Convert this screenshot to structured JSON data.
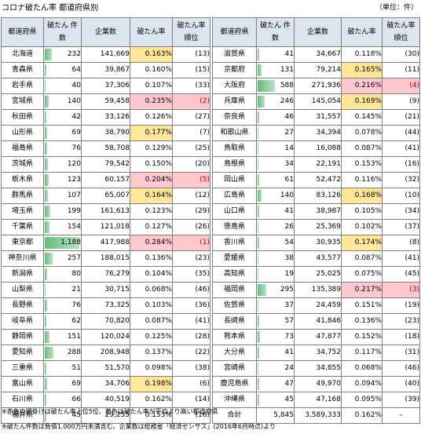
{
  "title": "コロナ破たん率  都道府県別",
  "unit": "（単位：件）",
  "headers": {
    "pref": "都道府県",
    "bankrupt": "破たん 件数",
    "companies": "企業数",
    "rate": "破たん率",
    "rank": "破たん率 順位"
  },
  "max_bankrupt": 1188,
  "left_rows": [
    {
      "pref": "北海道",
      "bankrupt": "232",
      "companies": "141,669",
      "rate": "0.163%",
      "rank": "(13)",
      "hl": "y",
      "bar": 232
    },
    {
      "pref": "青森県",
      "bankrupt": "64",
      "companies": "39,867",
      "rate": "0.160%",
      "rank": "(15)",
      "hl": "",
      "bar": 64
    },
    {
      "pref": "岩手県",
      "bankrupt": "40",
      "companies": "37,306",
      "rate": "0.107%",
      "rank": "(33)",
      "hl": "",
      "bar": 40
    },
    {
      "pref": "宮城県",
      "bankrupt": "140",
      "companies": "59,458",
      "rate": "0.235%",
      "rank": "(2)",
      "hl": "r",
      "bar": 140
    },
    {
      "pref": "秋田県",
      "bankrupt": "42",
      "companies": "33,126",
      "rate": "0.126%",
      "rank": "(27)",
      "hl": "",
      "bar": 42
    },
    {
      "pref": "山形県",
      "bankrupt": "69",
      "companies": "38,790",
      "rate": "0.177%",
      "rank": "(7)",
      "hl": "y",
      "bar": 69
    },
    {
      "pref": "福島県",
      "bankrupt": "76",
      "companies": "58,708",
      "rate": "0.129%",
      "rank": "(25)",
      "hl": "",
      "bar": 76
    },
    {
      "pref": "茨城県",
      "bankrupt": "120",
      "companies": "79,542",
      "rate": "0.150%",
      "rank": "(20)",
      "hl": "",
      "bar": 120
    },
    {
      "pref": "栃木県",
      "bankrupt": "123",
      "companies": "60,157",
      "rate": "0.204%",
      "rank": "(5)",
      "hl": "r",
      "bar": 123
    },
    {
      "pref": "群馬県",
      "bankrupt": "107",
      "companies": "65,007",
      "rate": "0.164%",
      "rank": "(12)",
      "hl": "y",
      "bar": 107
    },
    {
      "pref": "埼玉県",
      "bankrupt": "199",
      "companies": "161,613",
      "rate": "0.123%",
      "rank": "(29)",
      "hl": "",
      "bar": 199
    },
    {
      "pref": "千葉県",
      "bankrupt": "154",
      "companies": "121,018",
      "rate": "0.127%",
      "rank": "(26)",
      "hl": "",
      "bar": 154
    },
    {
      "pref": "東京都",
      "bankrupt": "1,188",
      "companies": "417,988",
      "rate": "0.284%",
      "rank": "(1)",
      "hl": "r",
      "bar": 1188
    },
    {
      "pref": "神奈川県",
      "bankrupt": "257",
      "companies": "188,015",
      "rate": "0.136%",
      "rank": "(23)",
      "hl": "",
      "bar": 257
    },
    {
      "pref": "新潟県",
      "bankrupt": "80",
      "companies": "76,279",
      "rate": "0.104%",
      "rank": "(35)",
      "hl": "",
      "bar": 80
    },
    {
      "pref": "山梨県",
      "bankrupt": "21",
      "companies": "30,715",
      "rate": "0.068%",
      "rank": "(46)",
      "hl": "",
      "bar": 21
    },
    {
      "pref": "長野県",
      "bankrupt": "76",
      "companies": "73,325",
      "rate": "0.103%",
      "rank": "(36)",
      "hl": "",
      "bar": 76
    },
    {
      "pref": "岐阜県",
      "bankrupt": "62",
      "companies": "70,820",
      "rate": "0.087%",
      "rank": "(41)",
      "hl": "",
      "bar": 62
    },
    {
      "pref": "静岡県",
      "bankrupt": "151",
      "companies": "120,024",
      "rate": "0.125%",
      "rank": "(28)",
      "hl": "",
      "bar": 151
    },
    {
      "pref": "愛知県",
      "bankrupt": "288",
      "companies": "208,948",
      "rate": "0.137%",
      "rank": "(22)",
      "hl": "",
      "bar": 288
    },
    {
      "pref": "三重県",
      "bankrupt": "51",
      "companies": "51,570",
      "rate": "0.098%",
      "rank": "(38)",
      "hl": "",
      "bar": 51
    },
    {
      "pref": "富山県",
      "bankrupt": "69",
      "companies": "34,706",
      "rate": "0.198%",
      "rank": "(6)",
      "hl": "y",
      "bar": 69
    },
    {
      "pref": "石川県",
      "bankrupt": "66",
      "companies": "40,519",
      "rate": "0.162%",
      "rank": "(14)",
      "hl": "",
      "bar": 66
    },
    {
      "pref": "福井県",
      "bankrupt": "45",
      "companies": "29,255",
      "rate": "0.153%",
      "rank": "(16)",
      "hl": "",
      "bar": 45
    }
  ],
  "right_rows": [
    {
      "pref": "滋賀県",
      "bankrupt": "41",
      "companies": "34,667",
      "rate": "0.118%",
      "rank": "(30)",
      "hl": "",
      "bar": 41
    },
    {
      "pref": "京都府",
      "bankrupt": "131",
      "companies": "79,214",
      "rate": "0.165%",
      "rank": "(11)",
      "hl": "y",
      "bar": 131
    },
    {
      "pref": "大阪府",
      "bankrupt": "588",
      "companies": "271,936",
      "rate": "0.216%",
      "rank": "(4)",
      "hl": "r",
      "bar": 588
    },
    {
      "pref": "兵庫県",
      "bankrupt": "246",
      "companies": "145,054",
      "rate": "0.169%",
      "rank": "(9)",
      "hl": "y",
      "bar": 246
    },
    {
      "pref": "奈良県",
      "bankrupt": "46",
      "companies": "31,557",
      "rate": "0.145%",
      "rank": "(21)",
      "hl": "",
      "bar": 46
    },
    {
      "pref": "和歌山県",
      "bankrupt": "27",
      "companies": "34,394",
      "rate": "0.078%",
      "rank": "(44)",
      "hl": "",
      "bar": 27
    },
    {
      "pref": "鳥取県",
      "bankrupt": "14",
      "companies": "16,088",
      "rate": "0.087%",
      "rank": "(41)",
      "hl": "",
      "bar": 14
    },
    {
      "pref": "島根県",
      "bankrupt": "34",
      "companies": "22,191",
      "rate": "0.153%",
      "rank": "(16)",
      "hl": "",
      "bar": 34
    },
    {
      "pref": "岡山県",
      "bankrupt": "61",
      "companies": "52,472",
      "rate": "0.116%",
      "rank": "(32)",
      "hl": "",
      "bar": 61
    },
    {
      "pref": "広島県",
      "bankrupt": "140",
      "companies": "83,126",
      "rate": "0.168%",
      "rank": "(10)",
      "hl": "y",
      "bar": 140
    },
    {
      "pref": "山口県",
      "bankrupt": "41",
      "companies": "38,987",
      "rate": "0.105%",
      "rank": "(34)",
      "hl": "",
      "bar": 41
    },
    {
      "pref": "徳島県",
      "bankrupt": "26",
      "companies": "25,369",
      "rate": "0.102%",
      "rank": "(37)",
      "hl": "",
      "bar": 26
    },
    {
      "pref": "香川県",
      "bankrupt": "54",
      "companies": "30,935",
      "rate": "0.174%",
      "rank": "(8)",
      "hl": "y",
      "bar": 54
    },
    {
      "pref": "愛媛県",
      "bankrupt": "38",
      "companies": "43,577",
      "rate": "0.087%",
      "rank": "(41)",
      "hl": "",
      "bar": 38
    },
    {
      "pref": "高知県",
      "bankrupt": "19",
      "companies": "25,025",
      "rate": "0.075%",
      "rank": "(45)",
      "hl": "",
      "bar": 19
    },
    {
      "pref": "福岡県",
      "bankrupt": "295",
      "companies": "135,389",
      "rate": "0.217%",
      "rank": "(3)",
      "hl": "r",
      "bar": 295
    },
    {
      "pref": "佐賀県",
      "bankrupt": "37",
      "companies": "24,459",
      "rate": "0.151%",
      "rank": "(19)",
      "hl": "",
      "bar": 37
    },
    {
      "pref": "長崎県",
      "bankrupt": "57",
      "companies": "41,846",
      "rate": "0.136%",
      "rank": "(23)",
      "hl": "",
      "bar": 57
    },
    {
      "pref": "熊本県",
      "bankrupt": "73",
      "companies": "47,877",
      "rate": "0.152%",
      "rank": "(18)",
      "hl": "",
      "bar": 73
    },
    {
      "pref": "大分県",
      "bankrupt": "41",
      "companies": "34,752",
      "rate": "0.117%",
      "rank": "(31)",
      "hl": "",
      "bar": 41
    },
    {
      "pref": "宮崎県",
      "bankrupt": "24",
      "companies": "34,855",
      "rate": "0.068%",
      "rank": "(46)",
      "hl": "",
      "bar": 24
    },
    {
      "pref": "鹿児島県",
      "bankrupt": "47",
      "companies": "49,970",
      "rate": "0.094%",
      "rank": "(40)",
      "hl": "",
      "bar": 47
    },
    {
      "pref": "沖縄県",
      "bankrupt": "45",
      "companies": "47,168",
      "rate": "0.095%",
      "rank": "(39)",
      "hl": "",
      "bar": 45
    }
  ],
  "total": {
    "label": "合計",
    "bankrupt": "5,845",
    "companies": "3,589,333",
    "rate": "0.162%",
    "rank": "–"
  },
  "notes": [
    "※赤色の網掛けは破たん率上位5位、黄色は破たん率が平均より高い都道府県",
    "※破たん件数は負債1,000万円未満含む。企業数は総務省「経済センサス」(2016年6月時点)より"
  ]
}
